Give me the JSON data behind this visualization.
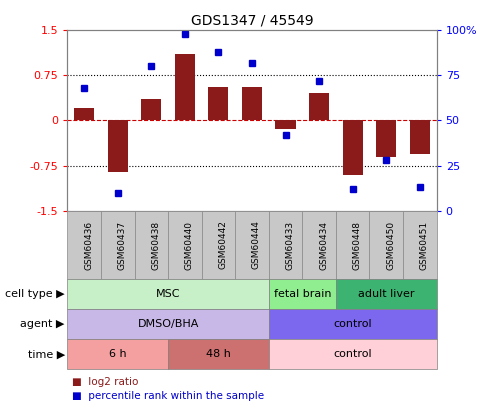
{
  "title": "GDS1347 / 45549",
  "samples": [
    "GSM60436",
    "GSM60437",
    "GSM60438",
    "GSM60440",
    "GSM60442",
    "GSM60444",
    "GSM60433",
    "GSM60434",
    "GSM60448",
    "GSM60450",
    "GSM60451"
  ],
  "log2_ratio": [
    0.2,
    -0.85,
    0.35,
    1.1,
    0.55,
    0.55,
    -0.15,
    0.45,
    -0.9,
    -0.6,
    -0.55
  ],
  "percentile_rank": [
    68,
    10,
    80,
    98,
    88,
    82,
    42,
    72,
    12,
    28,
    13
  ],
  "ylim_left": [
    -1.5,
    1.5
  ],
  "ylim_right": [
    0,
    100
  ],
  "yticks_left": [
    -1.5,
    -0.75,
    0,
    0.75,
    1.5
  ],
  "yticks_right": [
    0,
    25,
    50,
    75,
    100
  ],
  "bar_color": "#8B1A1A",
  "dot_color": "#0000CD",
  "hline0_color": "#CC0000",
  "hline_pm_color": "#000000",
  "cell_type_groups": [
    {
      "label": "MSC",
      "start": 0,
      "end": 5,
      "color": "#C8F0C8"
    },
    {
      "label": "fetal brain",
      "start": 6,
      "end": 7,
      "color": "#90EE90"
    },
    {
      "label": "adult liver",
      "start": 8,
      "end": 10,
      "color": "#3CB371"
    }
  ],
  "agent_groups": [
    {
      "label": "DMSO/BHA",
      "start": 0,
      "end": 5,
      "color": "#C8B8E8"
    },
    {
      "label": "control",
      "start": 6,
      "end": 10,
      "color": "#7B68EE"
    }
  ],
  "time_groups": [
    {
      "label": "6 h",
      "start": 0,
      "end": 2,
      "color": "#F4A0A0"
    },
    {
      "label": "48 h",
      "start": 3,
      "end": 5,
      "color": "#CD7070"
    },
    {
      "label": "control",
      "start": 6,
      "end": 10,
      "color": "#FFD0D8"
    }
  ],
  "row_labels": [
    "cell type",
    "agent",
    "time"
  ],
  "legend_bar_label": "log2 ratio",
  "legend_dot_label": "percentile rank within the sample",
  "tick_bg_color": "#C8C8C8",
  "tick_border_color": "#888888"
}
